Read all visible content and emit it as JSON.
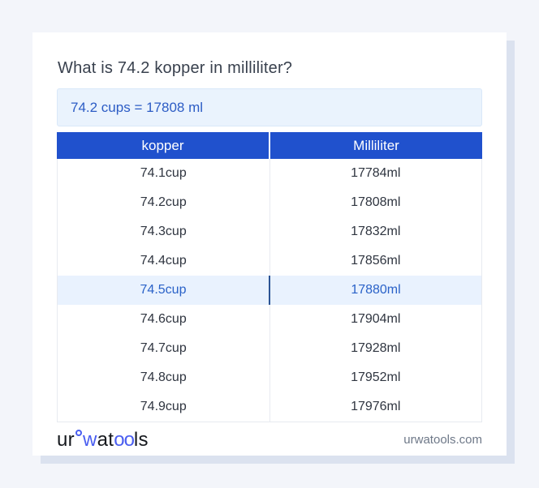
{
  "page": {
    "title": "What is 74.2 kopper in milliliter?",
    "answer": "74.2 cups = 17808 ml"
  },
  "table": {
    "headers": [
      "kopper",
      "Milliliter"
    ],
    "highlighted_row_index": 4,
    "rows": [
      {
        "kopper": "74.1cup",
        "milliliter": "17784ml",
        "highlighted": false
      },
      {
        "kopper": "74.2cup",
        "milliliter": "17808ml",
        "highlighted": false
      },
      {
        "kopper": "74.3cup",
        "milliliter": "17832ml",
        "highlighted": false
      },
      {
        "kopper": "74.4cup",
        "milliliter": "17856ml",
        "highlighted": false
      },
      {
        "kopper": "74.5cup",
        "milliliter": "17880ml",
        "highlighted": true
      },
      {
        "kopper": "74.6cup",
        "milliliter": "17904ml",
        "highlighted": false
      },
      {
        "kopper": "74.7cup",
        "milliliter": "17928ml",
        "highlighted": false
      },
      {
        "kopper": "74.8cup",
        "milliliter": "17952ml",
        "highlighted": false
      },
      {
        "kopper": "74.9cup",
        "milliliter": "17976ml",
        "highlighted": false
      }
    ]
  },
  "footer": {
    "logo_parts": {
      "ur": "ur",
      "w": "w",
      "at": "at",
      "oo": "oo",
      "ls": "ls"
    },
    "site": "urwatools.com"
  },
  "colors": {
    "page_bg": "#f3f5fa",
    "card_shadow": "#dbe2ef",
    "accent_blue": "#2051cd",
    "header_text": "#ffffff",
    "answer_bg": "#eaf3fd",
    "answer_border": "#d9e8f9",
    "answer_text": "#2c5cc5",
    "highlight_bg": "#e9f2fe",
    "highlight_text": "#2a62c8",
    "highlight_divider": "#2b5394",
    "table_border": "#e7eaf0",
    "row_text": "#2f3540",
    "title_text": "#39414e",
    "logo_blue": "#4a5ef0",
    "logo_dark": "#15181d",
    "site_text": "#6e7888"
  }
}
